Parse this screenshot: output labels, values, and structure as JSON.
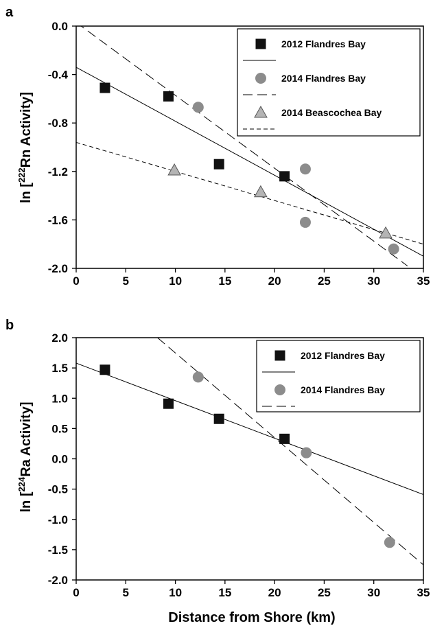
{
  "chart_data": [
    {
      "panel": "a",
      "type": "scatter",
      "ylabel": {
        "prefix": "ln [",
        "superscript": "222",
        "suffix": "Rn Activity]"
      },
      "xlim": [
        0,
        35
      ],
      "ylim": [
        -2.0,
        0.0
      ],
      "xticks": [
        "0",
        "5",
        "10",
        "15",
        "20",
        "25",
        "30",
        "35"
      ],
      "yticks": [
        "-2.0",
        "-1.6",
        "-1.2",
        "-0.8",
        "-0.4",
        "0.0"
      ],
      "grid": false,
      "legend_position": "top-right",
      "series": [
        {
          "name": "2012 Flandres Bay",
          "marker": "square",
          "color": "#111111",
          "line_style": "solid",
          "points": [
            [
              2.9,
              -0.51
            ],
            [
              9.3,
              -0.58
            ],
            [
              14.4,
              -1.14
            ],
            [
              21.0,
              -1.24
            ]
          ],
          "fit": {
            "x": [
              0,
              35
            ],
            "y": [
              -0.34,
              -1.9
            ]
          }
        },
        {
          "name": "2014 Flandres Bay",
          "marker": "circle",
          "color": "#8c8c8c",
          "line_style": "long-dash",
          "points": [
            [
              12.3,
              -0.67
            ],
            [
              23.1,
              -1.18
            ],
            [
              23.1,
              -1.62
            ],
            [
              32.0,
              -1.84
            ]
          ],
          "fit": {
            "x": [
              0,
              33.4
            ],
            "y": [
              0.03,
              -1.98
            ]
          }
        },
        {
          "name": "2014 Beascochea Bay",
          "marker": "triangle",
          "color": "#b4b4b4",
          "line_style": "short-dash",
          "points": [
            [
              9.9,
              -1.19
            ],
            [
              18.6,
              -1.37
            ],
            [
              31.2,
              -1.71
            ]
          ],
          "fit": {
            "x": [
              0,
              35
            ],
            "y": [
              -0.96,
              -1.8
            ]
          }
        }
      ]
    },
    {
      "panel": "b",
      "type": "scatter",
      "xlabel": "Distance from Shore (km)",
      "ylabel": {
        "prefix": "ln [",
        "superscript": "224",
        "suffix": "Ra Activity]"
      },
      "xlim": [
        0,
        35
      ],
      "ylim": [
        -2.0,
        2.0
      ],
      "xticks": [
        "0",
        "5",
        "10",
        "15",
        "20",
        "25",
        "30",
        "35"
      ],
      "yticks": [
        "-2.0",
        "-1.5",
        "-1.0",
        "-0.5",
        "0.0",
        "0.5",
        "1.0",
        "1.5",
        "2.0"
      ],
      "grid": false,
      "legend_position": "top-right",
      "series": [
        {
          "name": "2012 Flandres Bay",
          "marker": "square",
          "color": "#111111",
          "line_style": "solid",
          "points": [
            [
              2.9,
              1.47
            ],
            [
              9.3,
              0.91
            ],
            [
              14.4,
              0.66
            ],
            [
              21.0,
              0.33
            ]
          ],
          "fit": {
            "x": [
              0,
              35
            ],
            "y": [
              1.58,
              -0.59
            ]
          }
        },
        {
          "name": "2014 Flandres Bay",
          "marker": "circle",
          "color": "#8c8c8c",
          "line_style": "long-dash",
          "points": [
            [
              12.3,
              1.35
            ],
            [
              23.2,
              0.1
            ],
            [
              31.6,
              -1.38
            ]
          ],
          "fit": {
            "x": [
              8.2,
              35
            ],
            "y": [
              2.0,
              -1.75
            ]
          }
        }
      ]
    }
  ]
}
